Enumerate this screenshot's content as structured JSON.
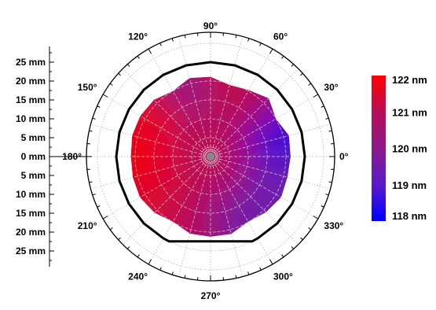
{
  "chart_data": {
    "type": "heatmap",
    "subtype": "polar-wafer-map",
    "radial_axis": {
      "unit": "mm",
      "ticks_upper": [
        "25 mm",
        "20 mm",
        "15 mm",
        "10 mm",
        "5 mm"
      ],
      "center_tick": "0 mm",
      "ticks_lower": [
        "5 mm",
        "10 mm",
        "15 mm",
        "20 mm",
        "25 mm"
      ],
      "range": [
        0,
        25
      ]
    },
    "angular_axis": {
      "ticks": [
        {
          "deg": 0,
          "label": "0°"
        },
        {
          "deg": 30,
          "label": "30°"
        },
        {
          "deg": 60,
          "label": "60°"
        },
        {
          "deg": 90,
          "label": "90°"
        },
        {
          "deg": 120,
          "label": "120°"
        },
        {
          "deg": 150,
          "label": "150°"
        },
        {
          "deg": 180,
          "label": "180°"
        },
        {
          "deg": 210,
          "label": "210°"
        },
        {
          "deg": 240,
          "label": "240°"
        },
        {
          "deg": 270,
          "label": "270°"
        },
        {
          "deg": 300,
          "label": "300°"
        },
        {
          "deg": 330,
          "label": "330°"
        }
      ]
    },
    "colorbar": {
      "labels": [
        "122 nm",
        "121 nm",
        "120 nm",
        "119 nm",
        "118 nm"
      ],
      "values": [
        122,
        121,
        120,
        119,
        118
      ],
      "colors": [
        "#ff0000",
        "#b80e55",
        "#8a1a8a",
        "#5a1ac8",
        "#0000ff"
      ]
    },
    "measured_region": {
      "edge_radius_mm": [
        {
          "deg": 0,
          "r": 21.2
        },
        {
          "deg": 15,
          "r": 21.5
        },
        {
          "deg": 30,
          "r": 20.0
        },
        {
          "deg": 45,
          "r": 21.8
        },
        {
          "deg": 60,
          "r": 20.3
        },
        {
          "deg": 75,
          "r": 19.6
        },
        {
          "deg": 90,
          "r": 21.1
        },
        {
          "deg": 105,
          "r": 21.5
        },
        {
          "deg": 120,
          "r": 20.0
        },
        {
          "deg": 135,
          "r": 21.2
        },
        {
          "deg": 150,
          "r": 21.5
        },
        {
          "deg": 165,
          "r": 21.5
        },
        {
          "deg": 180,
          "r": 21.1
        },
        {
          "deg": 195,
          "r": 21.3
        },
        {
          "deg": 210,
          "r": 21.6
        },
        {
          "deg": 225,
          "r": 21.0
        },
        {
          "deg": 240,
          "r": 19.9
        },
        {
          "deg": 255,
          "r": 21.1
        },
        {
          "deg": 270,
          "r": 21.2
        },
        {
          "deg": 285,
          "r": 21.2
        },
        {
          "deg": 300,
          "r": 19.9
        },
        {
          "deg": 315,
          "r": 20.8
        },
        {
          "deg": 330,
          "r": 21.6
        },
        {
          "deg": 345,
          "r": 21.1
        }
      ],
      "thickness_nm": [
        {
          "deg": 0,
          "r": 0,
          "value": 121.0
        },
        {
          "deg": 0,
          "r": 20,
          "value": 118.8
        },
        {
          "deg": 30,
          "r": 20,
          "value": 118.6
        },
        {
          "deg": 60,
          "r": 20,
          "value": 120.8
        },
        {
          "deg": 90,
          "r": 20,
          "value": 121.2
        },
        {
          "deg": 120,
          "r": 20,
          "value": 120.0
        },
        {
          "deg": 150,
          "r": 20,
          "value": 121.5
        },
        {
          "deg": 180,
          "r": 20,
          "value": 121.8
        },
        {
          "deg": 210,
          "r": 20,
          "value": 121.7
        },
        {
          "deg": 240,
          "r": 20,
          "value": 121.3
        },
        {
          "deg": 270,
          "r": 20,
          "value": 120.8
        },
        {
          "deg": 300,
          "r": 20,
          "value": 119.6
        },
        {
          "deg": 330,
          "r": 20,
          "value": 119.4
        }
      ]
    },
    "outline": {
      "wafer_radius_mm": 25,
      "flat_half_width_mm": 11,
      "flat_side_deg": 270
    },
    "grid": true,
    "legend_placement": "right"
  }
}
